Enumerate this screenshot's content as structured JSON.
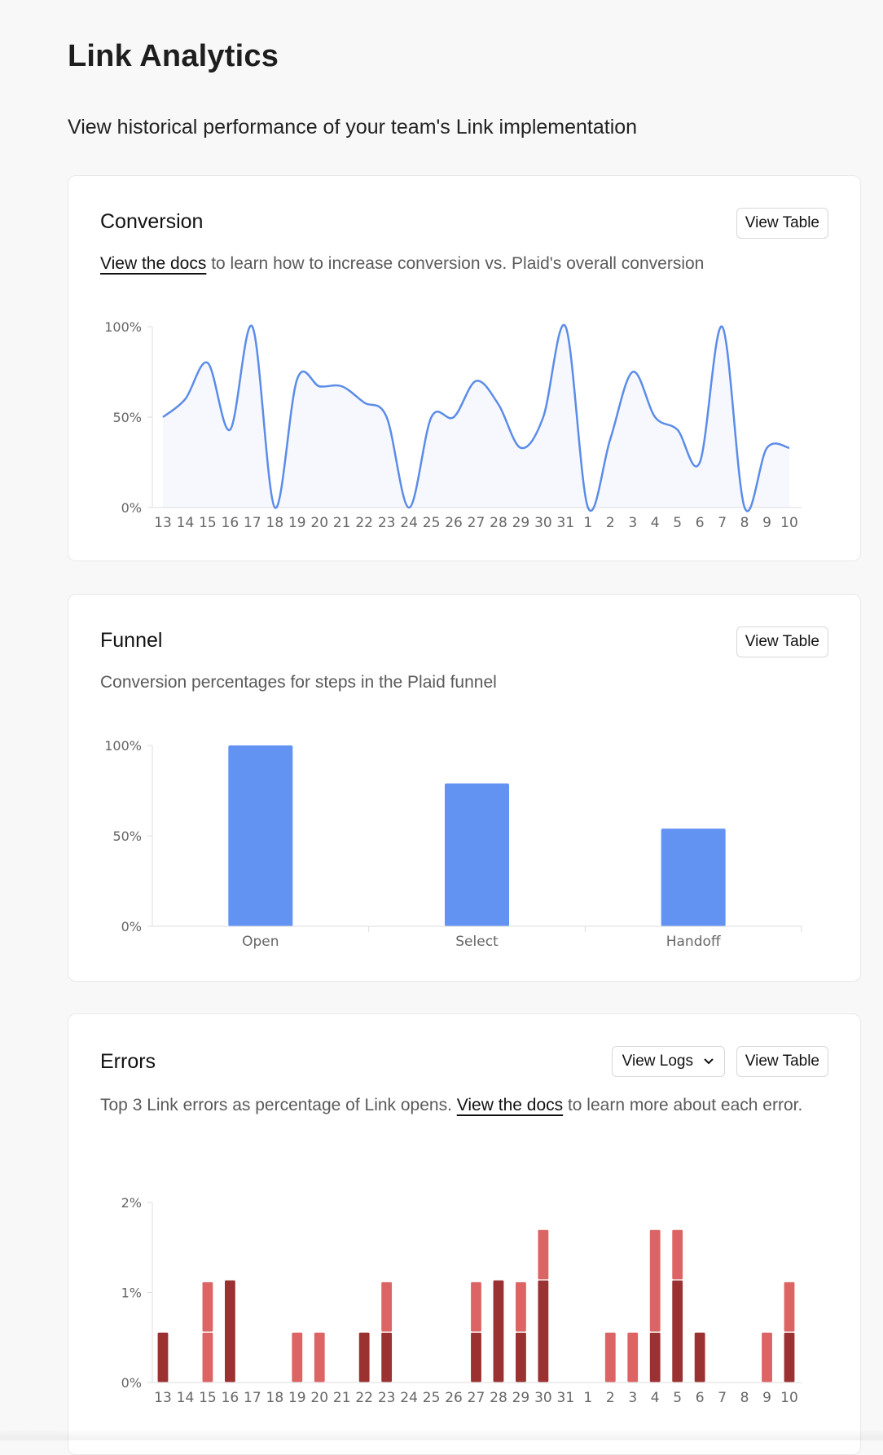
{
  "page": {
    "title": "Link Analytics",
    "subtitle": "View historical performance of your team's Link implementation"
  },
  "conversion": {
    "title": "Conversion",
    "view_table_label": "View Table",
    "docs_link": "View the docs",
    "desc_rest": " to learn how to increase conversion vs. Plaid's overall conversion"
  },
  "funnel": {
    "title": "Funnel",
    "view_table_label": "View Table",
    "desc": "Conversion percentages for steps in the Plaid funnel"
  },
  "errors": {
    "title": "Errors",
    "view_logs_label": "View Logs",
    "view_table_label": "View Table",
    "desc_pre": "Top 3 Link errors as percentage of Link opens. ",
    "docs_link": "View the docs",
    "desc_post": " to learn more about each error."
  },
  "colors": {
    "line": "#5b8ce8",
    "area": "#f7f8fd",
    "bar": "#6293f2",
    "error_dark": "#9b3131",
    "error_light": "#dd6464",
    "axis_text": "#666666"
  },
  "chart_data": [
    {
      "type": "area",
      "categories": [
        "13",
        "14",
        "15",
        "16",
        "17",
        "18",
        "19",
        "20",
        "21",
        "22",
        "23",
        "24",
        "25",
        "26",
        "27",
        "28",
        "29",
        "30",
        "31",
        "1",
        "2",
        "3",
        "4",
        "5",
        "6",
        "7",
        "8",
        "9",
        "10"
      ],
      "values": [
        50,
        60,
        80,
        43,
        100,
        0,
        71,
        67,
        67,
        58,
        50,
        0,
        50,
        50,
        70,
        57,
        33,
        50,
        100,
        0,
        38,
        75,
        50,
        43,
        25,
        100,
        0,
        33,
        33
      ],
      "y_ticks": [
        "0%",
        "50%",
        "100%"
      ],
      "ylim": [
        0,
        100
      ],
      "grid": false
    },
    {
      "type": "bar",
      "categories": [
        "Open",
        "Select",
        "Handoff"
      ],
      "values": [
        100,
        79,
        54
      ],
      "y_ticks": [
        "0%",
        "50%",
        "100%"
      ],
      "ylim": [
        0,
        100
      ],
      "grid": false
    },
    {
      "type": "bar",
      "stacked": true,
      "categories": [
        "13",
        "14",
        "15",
        "16",
        "17",
        "18",
        "19",
        "20",
        "21",
        "22",
        "23",
        "24",
        "25",
        "26",
        "27",
        "28",
        "29",
        "30",
        "31",
        "1",
        "2",
        "3",
        "4",
        "5",
        "6",
        "7",
        "8",
        "9",
        "10"
      ],
      "series": [
        {
          "values": [
            0.56,
            0,
            0,
            1.14,
            0,
            0,
            0,
            0,
            0,
            0.56,
            0.56,
            0,
            0,
            0,
            0.56,
            1.14,
            0.56,
            1.14,
            0,
            0,
            0,
            0,
            0.56,
            1.14,
            0.56,
            0,
            0,
            0,
            0.56
          ]
        },
        {
          "values": [
            0,
            0,
            0.56,
            0,
            0,
            0,
            0,
            0,
            0,
            0,
            0,
            0,
            0,
            0,
            0,
            0,
            0,
            0,
            0,
            0,
            0.56,
            0,
            0,
            0,
            0,
            0,
            0,
            0,
            0
          ]
        },
        {
          "values": [
            0,
            0,
            0.56,
            0,
            0,
            0,
            0.56,
            0.56,
            0,
            0,
            0.56,
            0,
            0,
            0,
            0.56,
            0,
            0.56,
            0.56,
            0,
            0,
            0,
            0.56,
            1.14,
            0.56,
            0,
            0,
            0,
            0.56,
            0.56
          ]
        }
      ],
      "y_ticks": [
        "0%",
        "1%",
        "2%"
      ],
      "ylim": [
        0,
        2
      ],
      "grid": false
    }
  ]
}
